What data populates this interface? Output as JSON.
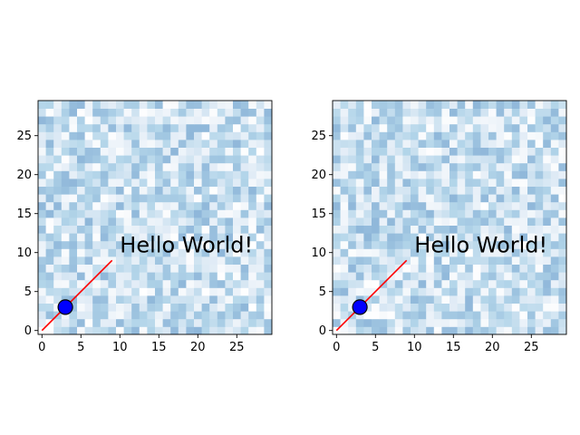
{
  "chart_data": [
    {
      "type": "heatmap",
      "title": "",
      "xlabel": "",
      "ylabel": "",
      "xlim": [
        -0.5,
        29.5
      ],
      "ylim": [
        -0.5,
        29.5
      ],
      "grid": false,
      "cells_description_size": [
        30,
        30
      ],
      "colormap": [
        "#f7fbff",
        "#c6dbef",
        "#9ecae1",
        "#6baed6"
      ],
      "image_alpha": 0.5,
      "xticks": [
        0,
        5,
        10,
        15,
        20,
        25
      ],
      "yticks": [
        0,
        5,
        10,
        15,
        20,
        25
      ],
      "line": {
        "x": [
          0,
          9
        ],
        "y": [
          0,
          9
        ],
        "color": "#ff0000"
      },
      "marker": {
        "x": 3,
        "y": 3,
        "fill": "#0000ff",
        "edge": "#000000"
      },
      "annotation": {
        "text": "Hello World!",
        "x": 10,
        "y": 10
      }
    },
    {
      "type": "heatmap",
      "title": "",
      "xlabel": "",
      "ylabel": "",
      "xlim": [
        -0.5,
        29.5
      ],
      "ylim": [
        -0.5,
        29.5
      ],
      "grid": false,
      "cells_description_size": [
        30,
        30
      ],
      "colormap": [
        "#f7fbff",
        "#c6dbef",
        "#9ecae1",
        "#6baed6"
      ],
      "image_alpha": 0.5,
      "xticks": [
        0,
        5,
        10,
        15,
        20,
        25
      ],
      "yticks": [
        0,
        5,
        10,
        15,
        20,
        25
      ],
      "line": {
        "x": [
          0,
          9
        ],
        "y": [
          0,
          9
        ],
        "color": "#ff0000"
      },
      "marker": {
        "x": 3,
        "y": 3,
        "fill": "#0000ff",
        "edge": "#000000"
      },
      "annotation": {
        "text": "Hello World!",
        "x": 10,
        "y": 10
      }
    }
  ]
}
